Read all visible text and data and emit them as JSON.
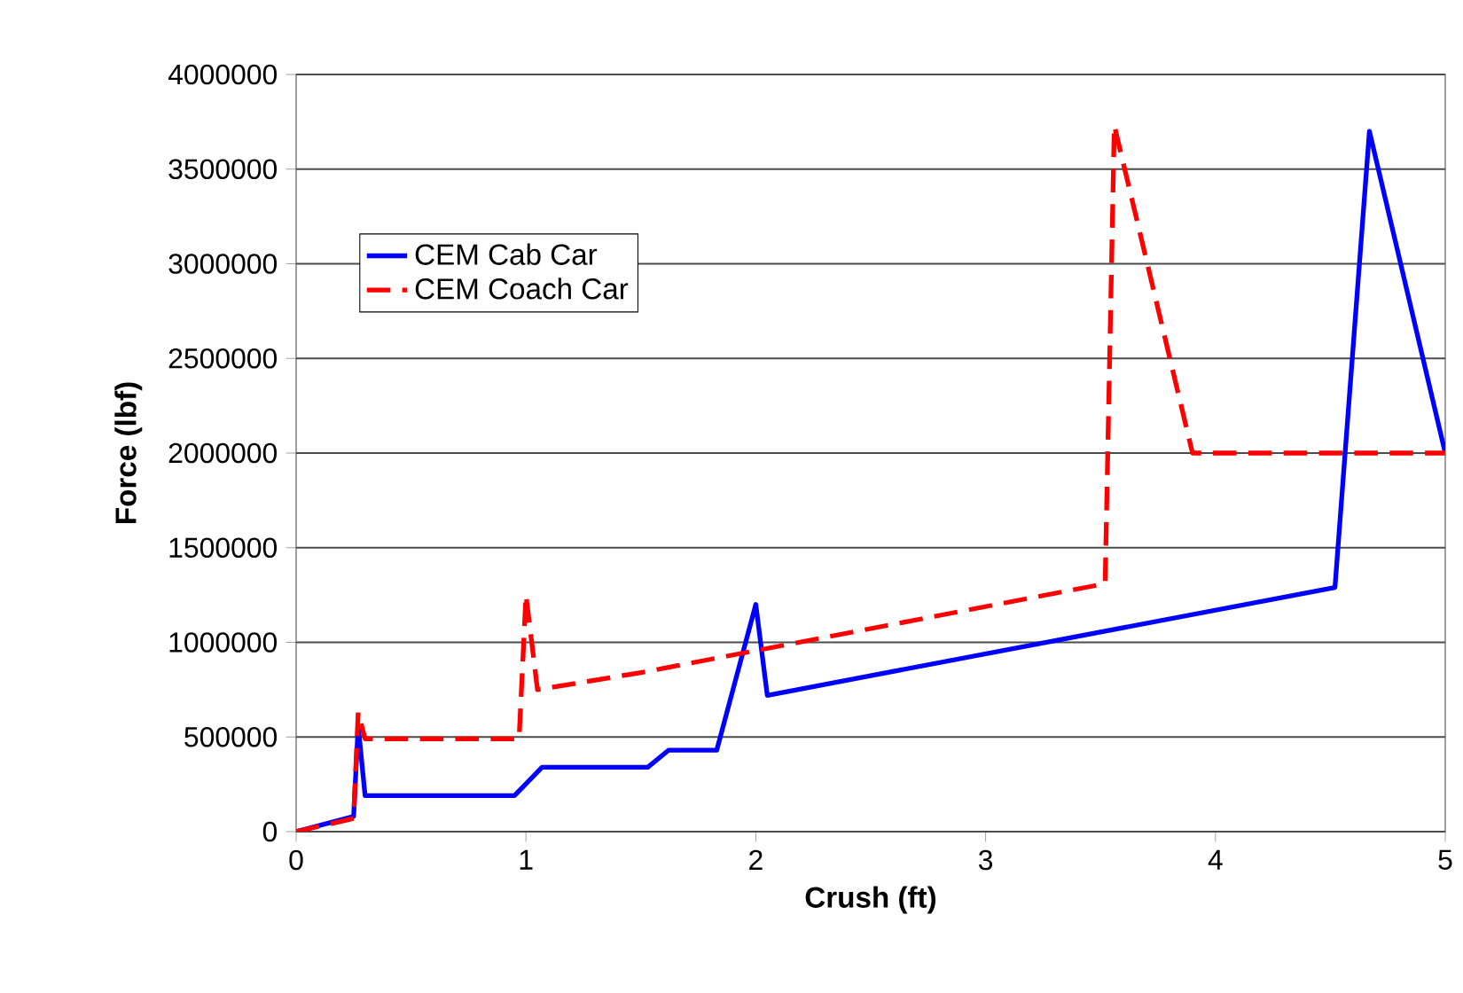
{
  "chart_data": {
    "type": "line",
    "xlabel": "Crush (ft)",
    "ylabel": "Force (lbf)",
    "xlim": [
      0,
      5
    ],
    "ylim": [
      0,
      4000000
    ],
    "xticks": [
      0,
      1,
      2,
      3,
      4,
      5
    ],
    "yticks": [
      0,
      500000,
      1000000,
      1500000,
      2000000,
      2500000,
      3000000,
      3500000,
      4000000
    ],
    "grid": "y",
    "legend": "top left",
    "series": [
      {
        "name": "CEM Cab Car",
        "color": "#0000ff",
        "line_style": "solid",
        "x": [
          0,
          0.25,
          0.27,
          0.3,
          0.95,
          1.07,
          1.53,
          1.62,
          1.83,
          2.0,
          2.05,
          4.52,
          4.67,
          5
        ],
        "values": [
          0,
          80000,
          560000,
          190000,
          190000,
          340000,
          340000,
          430000,
          430000,
          1200000,
          720000,
          1290000,
          3700000,
          2000000
        ]
      },
      {
        "name": "CEM Coach Car",
        "color": "#ff0000",
        "line_style": "dashed",
        "x": [
          0,
          0.25,
          0.27,
          0.3,
          0.97,
          1.0,
          1.05,
          1.5,
          3.52,
          3.56,
          3.9,
          5
        ],
        "values": [
          0,
          70000,
          630000,
          490000,
          490000,
          1250000,
          750000,
          840000,
          1310000,
          3730000,
          2000000,
          2000000
        ]
      }
    ]
  }
}
